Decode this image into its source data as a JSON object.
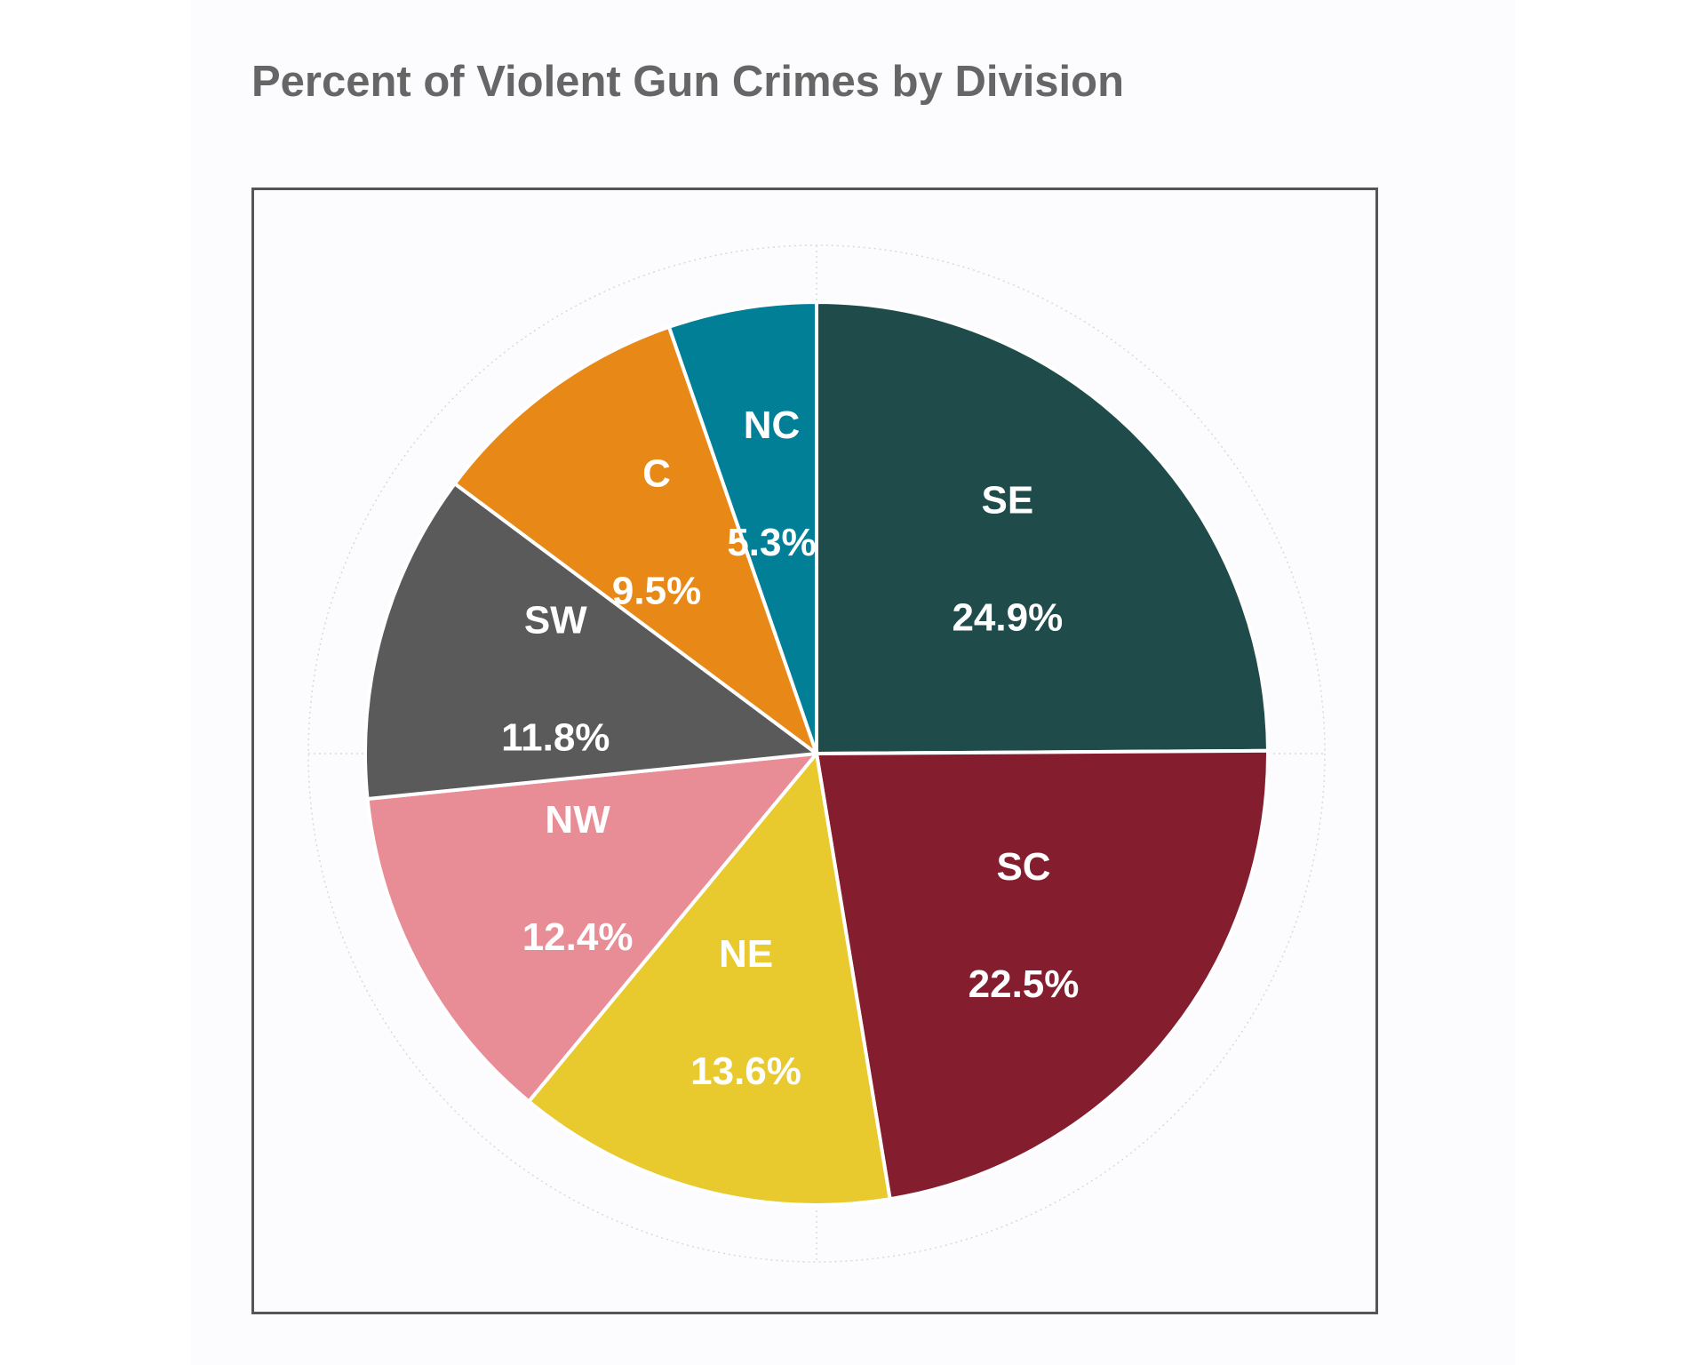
{
  "chart_data": {
    "type": "pie",
    "title": "Percent of Violent Gun Crimes by Division",
    "categories": [
      "SE",
      "SC",
      "NE",
      "NW",
      "SW",
      "C",
      "NC"
    ],
    "values": [
      24.9,
      22.5,
      13.6,
      12.4,
      11.8,
      9.5,
      5.3
    ],
    "value_labels": [
      "24.9%",
      "22.5%",
      "13.6%",
      "12.4%",
      "11.8%",
      "9.5%",
      "5.3%"
    ],
    "colors": [
      "#1f4b4b",
      "#841d2d",
      "#e8c92e",
      "#e88c96",
      "#5a5a5a",
      "#e88816",
      "#007f96"
    ],
    "start_angle": "12 o'clock",
    "direction": "clockwise",
    "grid": true,
    "legend": "none"
  }
}
